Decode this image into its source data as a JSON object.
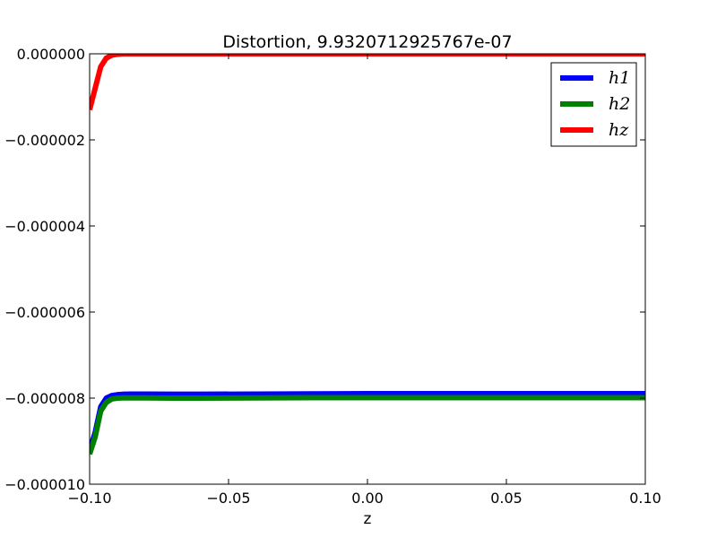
{
  "chart_data": {
    "type": "line",
    "title": "Distortion, 9.9320712925767e-07",
    "xlabel": "z",
    "ylabel": "",
    "xlim": [
      -0.1,
      0.1
    ],
    "ylim": [
      -1e-05,
      0.0
    ],
    "grid": false,
    "legend_position": "top-right",
    "x_ticks": [
      -0.1,
      -0.05,
      0.0,
      0.05,
      0.1
    ],
    "x_tick_labels": [
      "−0.10",
      "−0.05",
      "0.00",
      "0.05",
      "0.10"
    ],
    "y_ticks": [
      0.0,
      -2e-06,
      -4e-06,
      -6e-06,
      -8e-06,
      -1e-05
    ],
    "y_tick_labels": [
      "0.000000",
      "−0.000002",
      "−0.000004",
      "−0.000006",
      "−0.000008",
      "−0.000010"
    ],
    "series": [
      {
        "name": "h1",
        "legend_label": "h1",
        "color": "#0000ff",
        "x": [
          -0.1,
          -0.098,
          -0.096,
          -0.094,
          -0.092,
          -0.09,
          -0.088,
          -0.085,
          -0.08,
          -0.07,
          -0.06,
          -0.04,
          -0.02,
          0.0,
          0.02,
          0.05,
          0.08,
          0.1
        ],
        "y": [
          -9.2e-06,
          -8.8e-06,
          -8.2e-06,
          -8e-06,
          -7.94e-06,
          -7.92e-06,
          -7.91e-06,
          -7.905e-06,
          -7.905e-06,
          -7.91e-06,
          -7.91e-06,
          -7.905e-06,
          -7.9e-06,
          -7.895e-06,
          -7.895e-06,
          -7.895e-06,
          -7.895e-06,
          -7.895e-06
        ]
      },
      {
        "name": "h2",
        "legend_label": "h2",
        "color": "#008000",
        "x": [
          -0.1,
          -0.098,
          -0.096,
          -0.094,
          -0.092,
          -0.09,
          -0.088,
          -0.085,
          -0.08,
          -0.07,
          -0.06,
          -0.04,
          -0.02,
          0.0,
          0.02,
          0.05,
          0.08,
          0.1
        ],
        "y": [
          -9.3e-06,
          -8.9e-06,
          -8.3e-06,
          -8.1e-06,
          -8.02e-06,
          -8e-06,
          -7.995e-06,
          -7.995e-06,
          -7.995e-06,
          -8e-06,
          -8e-06,
          -7.995e-06,
          -7.99e-06,
          -7.99e-06,
          -7.99e-06,
          -7.99e-06,
          -7.99e-06,
          -7.99e-06
        ]
      },
      {
        "name": "hz",
        "legend_label": "hz",
        "color": "#ff0000",
        "x": [
          -0.1,
          -0.098,
          -0.096,
          -0.094,
          -0.092,
          -0.09,
          -0.088,
          -0.085,
          -0.08,
          -0.06,
          -0.03,
          0.0,
          0.05,
          0.1
        ],
        "y": [
          -1.3e-06,
          -8e-07,
          -3e-07,
          -1e-07,
          -3e-08,
          -1e-08,
          0.0,
          0.0,
          0.0,
          0.0,
          0.0,
          0.0,
          0.0,
          0.0
        ]
      }
    ]
  }
}
